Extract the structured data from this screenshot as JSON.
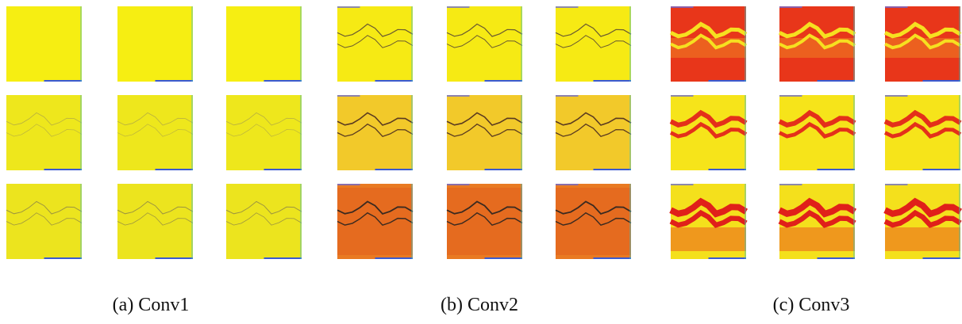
{
  "figure": {
    "captions": [
      "(a) Conv1",
      "(b) Conv2",
      "(c) Conv3"
    ]
  }
}
